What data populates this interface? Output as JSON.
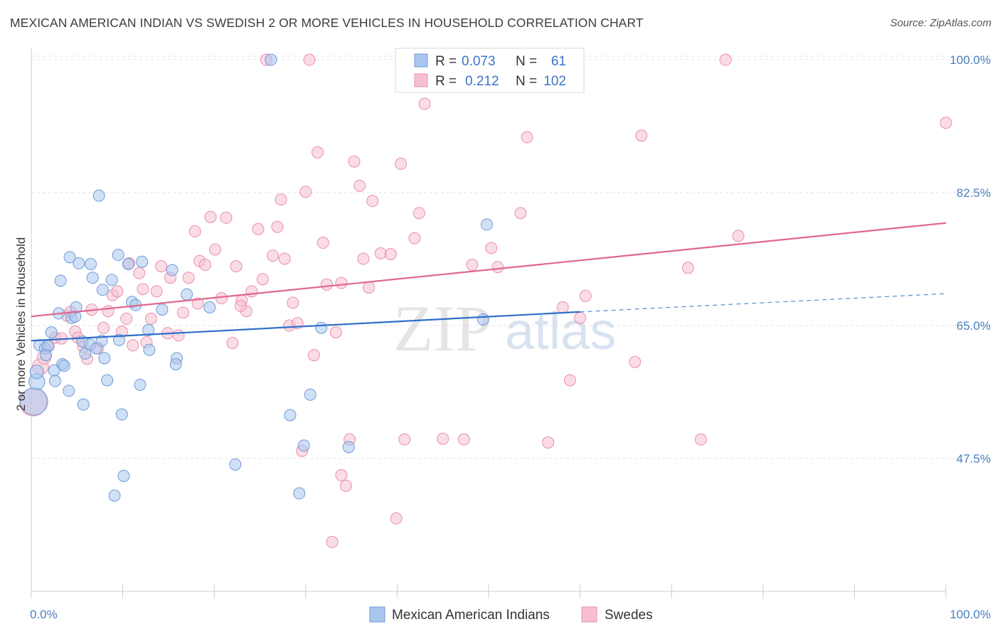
{
  "title": "MEXICAN AMERICAN INDIAN VS SWEDISH 2 OR MORE VEHICLES IN HOUSEHOLD CORRELATION CHART",
  "source": "Source: ZipAtlas.com",
  "watermark": {
    "zip": "ZIP",
    "atlas": "atlas"
  },
  "colors": {
    "blue_fill": "#a9c6ee",
    "blue_stroke": "#6f9bd6",
    "blue_line": "#2f6fc9",
    "pink_fill": "#f6bfd0",
    "pink_stroke": "#e98fae",
    "pink_line": "#e0678f",
    "axis_text": "#4a7fc1"
  },
  "legend_top": {
    "rows": [
      {
        "r_label": "R =",
        "r_value": "0.073",
        "n_label": "N =",
        "n_value": "61",
        "series": "blue"
      },
      {
        "r_label": "R =",
        "r_value": "0.212",
        "n_label": "N =",
        "n_value": "102",
        "series": "pink"
      }
    ]
  },
  "legend_bottom": [
    {
      "label": "Mexican American Indians",
      "series": "blue"
    },
    {
      "label": "Swedes",
      "series": "pink"
    }
  ],
  "chart_data": {
    "type": "scatter",
    "title": "MEXICAN AMERICAN INDIAN VS SWEDISH 2 OR MORE VEHICLES IN HOUSEHOLD CORRELATION CHART",
    "xlabel": "",
    "ylabel": "2 or more Vehicles in Household",
    "xlim": [
      0,
      100
    ],
    "ylim": [
      30,
      101.5
    ],
    "x_tick_labels": [
      {
        "value": 0,
        "label": "0.0%"
      },
      {
        "value": 100,
        "label": "100.0%"
      }
    ],
    "y_tick_labels": [
      {
        "value": 100,
        "label": "100.0%"
      },
      {
        "value": 82.5,
        "label": "82.5%"
      },
      {
        "value": 65,
        "label": "65.0%"
      },
      {
        "value": 47.5,
        "label": "47.5%"
      }
    ],
    "grid": true,
    "legend_placement": "top-center",
    "series": [
      {
        "name": "Mexican American Indians",
        "color": "blue",
        "r": 0.073,
        "n": 61,
        "trend": {
          "x0": 0,
          "y0": 63.0,
          "x1": 60,
          "y1": 66.8,
          "dashed_to_x": 100,
          "dashed_to_y": 69.2
        },
        "points": [
          [
            0.3,
            55.0,
            24
          ],
          [
            0.6,
            57.6,
            14
          ],
          [
            0.6,
            58.9,
            12
          ],
          [
            0.9,
            62.4,
            10
          ],
          [
            1.5,
            62.0,
            10
          ],
          [
            1.8,
            62.3,
            10
          ],
          [
            1.6,
            61.1,
            10
          ],
          [
            2.2,
            64.1,
            10
          ],
          [
            2.5,
            59.1,
            10
          ],
          [
            2.6,
            57.7,
            10
          ],
          [
            3.0,
            66.6,
            10
          ],
          [
            3.2,
            70.9,
            10
          ],
          [
            3.4,
            59.9,
            10
          ],
          [
            3.6,
            59.7,
            10
          ],
          [
            4.1,
            56.4,
            10
          ],
          [
            4.2,
            74.0,
            10
          ],
          [
            4.4,
            66.0,
            10
          ],
          [
            4.8,
            66.2,
            10
          ],
          [
            4.9,
            67.4,
            10
          ],
          [
            5.2,
            73.2,
            10
          ],
          [
            5.6,
            62.9,
            10
          ],
          [
            5.7,
            54.6,
            10
          ],
          [
            5.9,
            61.3,
            10
          ],
          [
            6.4,
            62.5,
            10
          ],
          [
            6.5,
            73.1,
            10
          ],
          [
            6.7,
            71.3,
            10
          ],
          [
            7.1,
            62.0,
            10
          ],
          [
            7.4,
            82.1,
            10
          ],
          [
            7.7,
            63.0,
            10
          ],
          [
            7.8,
            69.7,
            10
          ],
          [
            8.0,
            60.7,
            10
          ],
          [
            8.3,
            57.8,
            10
          ],
          [
            8.8,
            71.0,
            10
          ],
          [
            9.1,
            42.6,
            10
          ],
          [
            9.5,
            74.3,
            10
          ],
          [
            9.6,
            63.1,
            10
          ],
          [
            9.9,
            53.3,
            10
          ],
          [
            10.1,
            45.2,
            10
          ],
          [
            10.6,
            73.1,
            10
          ],
          [
            11.0,
            68.1,
            10
          ],
          [
            11.4,
            67.7,
            10
          ],
          [
            11.9,
            57.2,
            10
          ],
          [
            12.1,
            73.4,
            10
          ],
          [
            12.8,
            64.4,
            10
          ],
          [
            12.9,
            61.8,
            10
          ],
          [
            14.3,
            67.1,
            10
          ],
          [
            15.4,
            72.3,
            10
          ],
          [
            15.9,
            60.7,
            10
          ],
          [
            15.8,
            59.9,
            10
          ],
          [
            17.0,
            69.1,
            10
          ],
          [
            19.5,
            67.4,
            10
          ],
          [
            22.3,
            46.7,
            10
          ],
          [
            26.2,
            100.0,
            10
          ],
          [
            28.3,
            53.2,
            10
          ],
          [
            29.3,
            42.9,
            10
          ],
          [
            29.8,
            49.2,
            10
          ],
          [
            31.7,
            64.7,
            10
          ],
          [
            34.7,
            49.0,
            10
          ],
          [
            49.4,
            65.8,
            10
          ],
          [
            49.8,
            78.3,
            10
          ],
          [
            30.5,
            55.9,
            10
          ]
        ]
      },
      {
        "name": "Swedes",
        "color": "pink",
        "r": 0.212,
        "n": 102,
        "trend": {
          "x0": 0,
          "y0": 66.2,
          "x1": 100,
          "y1": 78.5
        },
        "points": [
          [
            0.2,
            54.9,
            24
          ],
          [
            1.0,
            59.6,
            14
          ],
          [
            1.4,
            60.8,
            12
          ],
          [
            1.9,
            62.3,
            10
          ],
          [
            2.6,
            63.4,
            10
          ],
          [
            3.3,
            63.3,
            10
          ],
          [
            3.9,
            66.3,
            10
          ],
          [
            4.3,
            66.8,
            10
          ],
          [
            4.8,
            64.2,
            10
          ],
          [
            5.1,
            63.4,
            10
          ],
          [
            5.7,
            62.2,
            10
          ],
          [
            6.1,
            60.6,
            10
          ],
          [
            6.6,
            67.1,
            10
          ],
          [
            7.3,
            62.0,
            10
          ],
          [
            7.9,
            64.7,
            10
          ],
          [
            8.4,
            66.9,
            10
          ],
          [
            8.9,
            69.0,
            10
          ],
          [
            9.4,
            69.5,
            10
          ],
          [
            9.9,
            64.2,
            10
          ],
          [
            10.4,
            65.9,
            10
          ],
          [
            10.7,
            73.2,
            10
          ],
          [
            11.1,
            62.4,
            10
          ],
          [
            11.8,
            71.9,
            10
          ],
          [
            12.2,
            69.8,
            10
          ],
          [
            12.6,
            62.8,
            10
          ],
          [
            13.1,
            65.9,
            10
          ],
          [
            13.7,
            69.5,
            10
          ],
          [
            14.2,
            72.8,
            10
          ],
          [
            14.9,
            64.0,
            10
          ],
          [
            15.2,
            71.3,
            10
          ],
          [
            16.1,
            63.7,
            10
          ],
          [
            16.6,
            66.7,
            10
          ],
          [
            17.2,
            71.3,
            10
          ],
          [
            17.9,
            77.4,
            10
          ],
          [
            18.4,
            73.5,
            10
          ],
          [
            19.0,
            73.0,
            10
          ],
          [
            19.6,
            79.3,
            10
          ],
          [
            20.1,
            75.0,
            10
          ],
          [
            20.8,
            68.6,
            10
          ],
          [
            21.3,
            79.2,
            10
          ],
          [
            22.0,
            62.7,
            10
          ],
          [
            22.4,
            72.8,
            10
          ],
          [
            23.0,
            68.3,
            10
          ],
          [
            23.5,
            66.9,
            10
          ],
          [
            24.1,
            69.5,
            10
          ],
          [
            24.8,
            77.7,
            10
          ],
          [
            25.3,
            71.1,
            10
          ],
          [
            25.7,
            100.0,
            10
          ],
          [
            26.4,
            74.2,
            10
          ],
          [
            26.9,
            78.0,
            10
          ],
          [
            27.3,
            81.6,
            10
          ],
          [
            27.7,
            73.8,
            10
          ],
          [
            28.2,
            65.0,
            10
          ],
          [
            28.6,
            68.0,
            10
          ],
          [
            29.1,
            65.3,
            10
          ],
          [
            29.6,
            48.5,
            10
          ],
          [
            30.0,
            82.6,
            10
          ],
          [
            30.4,
            100.0,
            10
          ],
          [
            30.9,
            61.1,
            10
          ],
          [
            31.3,
            87.8,
            10
          ],
          [
            31.9,
            75.9,
            10
          ],
          [
            32.3,
            70.4,
            10
          ],
          [
            32.9,
            36.5,
            10
          ],
          [
            33.3,
            64.1,
            10
          ],
          [
            33.9,
            45.3,
            10
          ],
          [
            34.4,
            43.9,
            10
          ],
          [
            34.8,
            50.0,
            10
          ],
          [
            35.3,
            86.6,
            10
          ],
          [
            35.9,
            83.4,
            10
          ],
          [
            36.3,
            73.8,
            10
          ],
          [
            36.9,
            70.0,
            10
          ],
          [
            37.3,
            81.4,
            10
          ],
          [
            38.2,
            74.5,
            10
          ],
          [
            39.3,
            74.4,
            10
          ],
          [
            39.9,
            39.6,
            10
          ],
          [
            40.4,
            86.3,
            10
          ],
          [
            40.8,
            50.0,
            10
          ],
          [
            41.9,
            76.5,
            10
          ],
          [
            42.4,
            79.8,
            10
          ],
          [
            43.0,
            94.2,
            10
          ],
          [
            45.0,
            50.1,
            10
          ],
          [
            47.3,
            50.0,
            10
          ],
          [
            48.2,
            73.0,
            10
          ],
          [
            50.3,
            75.2,
            10
          ],
          [
            51.0,
            72.7,
            10
          ],
          [
            53.5,
            79.8,
            10
          ],
          [
            54.2,
            89.8,
            10
          ],
          [
            56.5,
            49.6,
            10
          ],
          [
            58.1,
            67.4,
            10
          ],
          [
            58.9,
            57.8,
            10
          ],
          [
            60.6,
            68.9,
            10
          ],
          [
            66.0,
            60.2,
            10
          ],
          [
            66.7,
            90.0,
            10
          ],
          [
            71.8,
            72.6,
            10
          ],
          [
            73.2,
            50.0,
            10
          ],
          [
            77.3,
            76.8,
            10
          ],
          [
            100.0,
            91.7,
            10
          ],
          [
            75.9,
            100.0,
            10
          ],
          [
            60.0,
            66.0,
            10
          ],
          [
            33.9,
            70.6,
            10
          ],
          [
            22.9,
            67.6,
            10
          ],
          [
            18.2,
            67.9,
            10
          ]
        ]
      }
    ]
  }
}
